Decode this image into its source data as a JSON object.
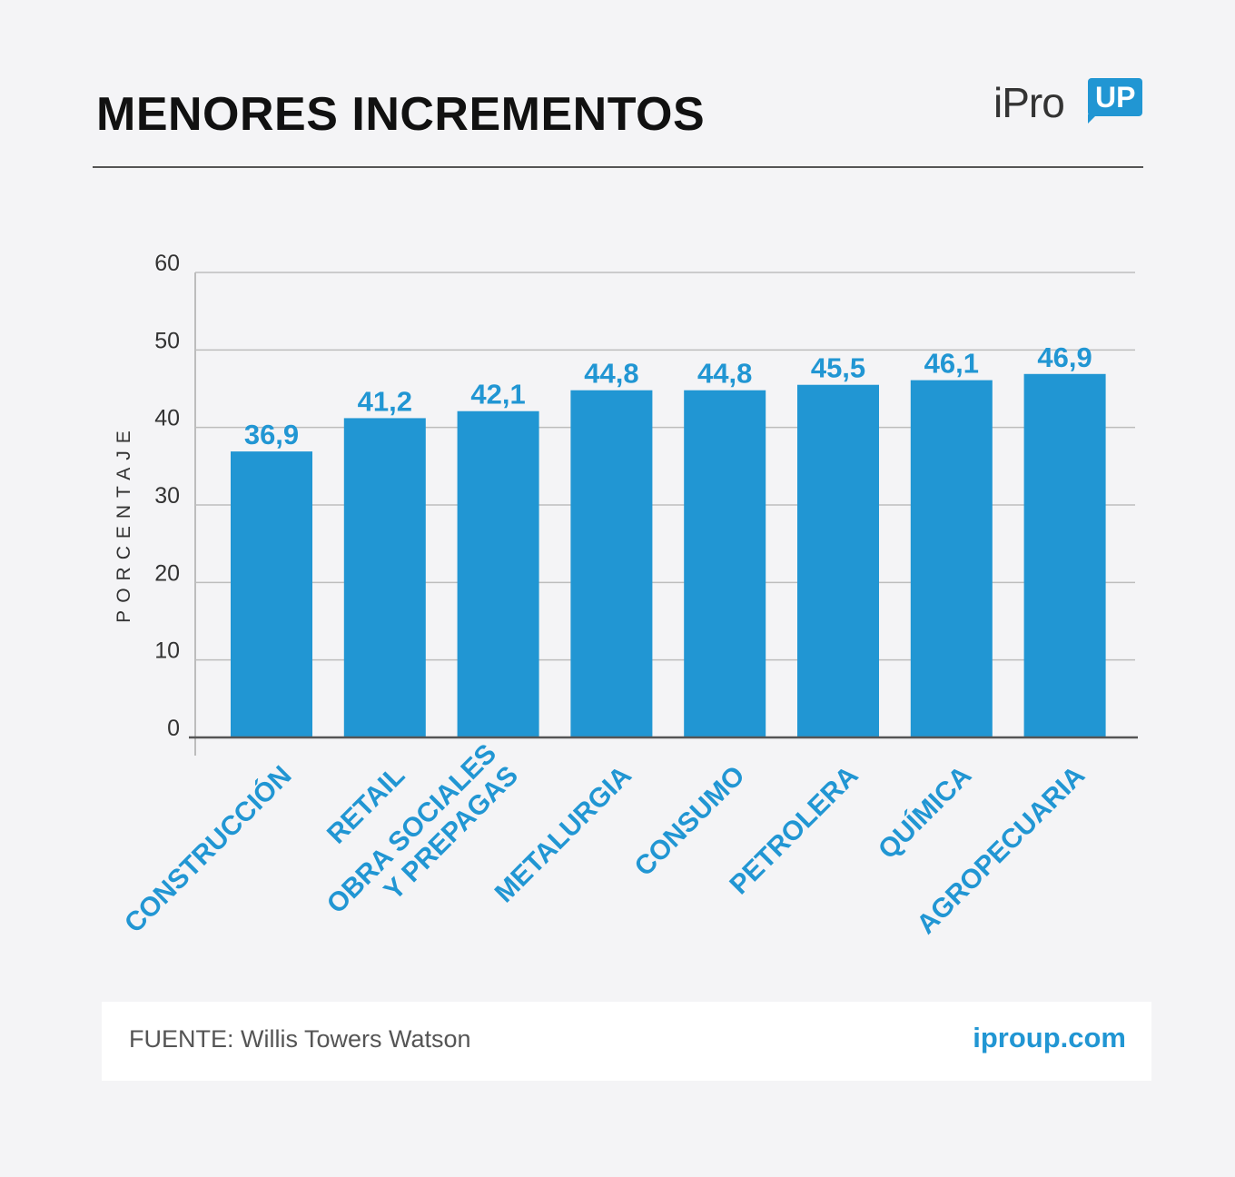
{
  "header": {
    "title": "MENORES INCREMENTOS",
    "logo_text": "iPro",
    "logo_badge": "UP"
  },
  "footer": {
    "source": "FUENTE: Willis Towers Watson",
    "site": "iproup.com"
  },
  "colors": {
    "bar": "#2196d3",
    "value_label": "#2196d3",
    "category_label": "#2196d3",
    "grid": "#bdbdbd",
    "axis": "#555555",
    "tick_label": "#333333"
  },
  "chart_data": {
    "type": "bar",
    "title": "",
    "xlabel": "",
    "ylabel": "PORCENTAJE",
    "ylim": [
      0,
      60
    ],
    "yticks": [
      0,
      10,
      20,
      30,
      40,
      50,
      60
    ],
    "grid": true,
    "categories": [
      [
        "CONSTRUCCIÓN"
      ],
      [
        "RETAIL"
      ],
      [
        "OBRA SOCIALES",
        "Y PREPAGAS"
      ],
      [
        "METALURGIA"
      ],
      [
        "CONSUMO"
      ],
      [
        "PETROLERA"
      ],
      [
        "QUÍMICA"
      ],
      [
        "AGROPECUARIA"
      ]
    ],
    "values": [
      36.9,
      41.2,
      42.1,
      44.8,
      44.8,
      45.5,
      46.1,
      46.9
    ],
    "value_labels": [
      "36,9",
      "41,2",
      "42,1",
      "44,8",
      "44,8",
      "45,5",
      "46,1",
      "46,9"
    ]
  }
}
